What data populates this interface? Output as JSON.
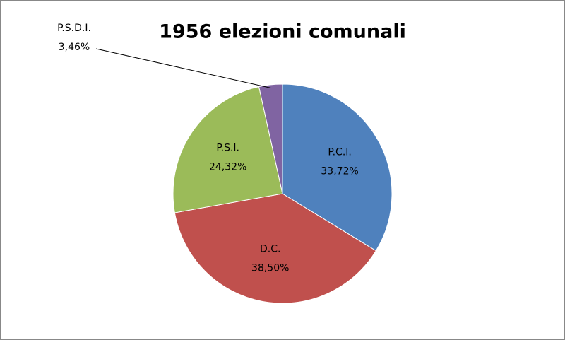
{
  "chart_data": {
    "type": "pie",
    "title": "1956 elezioni comunali",
    "categories": [
      "P.C.I.",
      "D.C.",
      "P.S.I.",
      "P.S.D.I."
    ],
    "values": [
      33.72,
      38.5,
      24.32,
      3.46
    ],
    "value_labels": [
      "33,72%",
      "38,50%",
      "24,32%",
      "3,46%"
    ],
    "colors": [
      "#4f81bd",
      "#c0504d",
      "#9bbb59",
      "#8064a2"
    ]
  }
}
